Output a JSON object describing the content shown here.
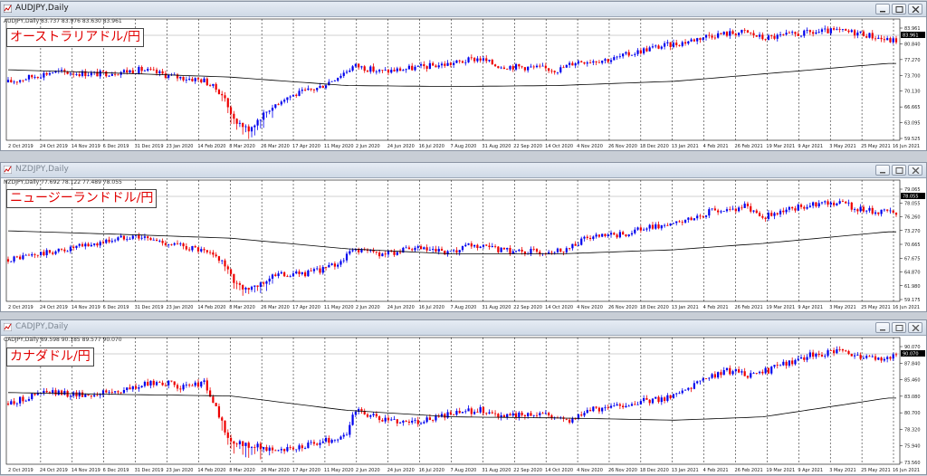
{
  "windows": [
    {
      "title": "AUDJPY,Daily",
      "active": true,
      "info_line": "AUDJPY,Daily  83.737 83.976 83.630 83.961",
      "label": "オーストラリアドル/円",
      "current_price": "83.961",
      "y_ticks": [
        "83.961",
        "80.840",
        "77.270",
        "73.700",
        "70.130",
        "66.665",
        "63.095",
        "59.525"
      ]
    },
    {
      "title": "NZDJPY,Daily",
      "active": false,
      "info_line": "NZDJPY,Daily  77.692 78.122 77.489 78.055",
      "label": "ニュージーランドドル/円",
      "current_price": "78.055",
      "y_ticks": [
        "79.065",
        "78.055",
        "76.260",
        "73.270",
        "70.665",
        "67.675",
        "64.870",
        "61.980",
        "59.175"
      ]
    },
    {
      "title": "CADJPY,Daily",
      "active": false,
      "info_line": "CADJPY,Daily  89.598 90.185 89.577 90.070",
      "label": "カナダドル/円",
      "current_price": "90.070",
      "y_ticks": [
        "90.070",
        "87.840",
        "85.460",
        "83.080",
        "80.700",
        "78.320",
        "75.940",
        "73.560"
      ]
    }
  ],
  "x_labels": [
    "2 Oct 2019",
    "24 Oct 2019",
    "14 Nov 2019",
    "6 Dec 2019",
    "31 Dec 2019",
    "23 Jan 2020",
    "14 Feb 2020",
    "8 Mar 2020",
    "26 Mar 2020",
    "17 Apr 2020",
    "11 May 2020",
    "2 Jun 2020",
    "24 Jun 2020",
    "16 Jul 2020",
    "7 Aug 2020",
    "31 Aug 2020",
    "22 Sep 2020",
    "14 Oct 2020",
    "4 Nov 2020",
    "26 Nov 2020",
    "18 Dec 2020",
    "13 Jan 2021",
    "4 Feb 2021",
    "26 Feb 2021",
    "19 Mar 2021",
    "9 Apr 2021",
    "3 May 2021",
    "25 May 2021",
    "16 Jun 2021"
  ],
  "colors": {
    "bull": "#0000ee",
    "bear": "#ee0000",
    "ma": "#000000",
    "grid": "#000000",
    "label_text": "#e00000",
    "price_tag": "#000000"
  },
  "icons": {
    "chart": "chart-icon",
    "minimize": "minimize-icon",
    "maximize": "maximize-icon",
    "close": "close-icon"
  }
}
